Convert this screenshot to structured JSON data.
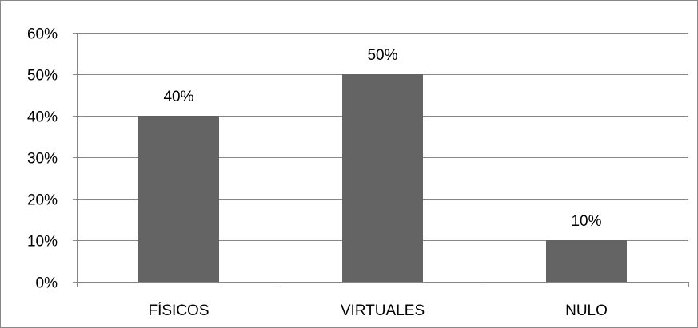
{
  "chart_data": {
    "type": "bar",
    "categories": [
      "FÍSICOS",
      "VIRTUALES",
      "NULO"
    ],
    "values": [
      40,
      50,
      10
    ],
    "data_labels": [
      "40%",
      "50%",
      "10%"
    ],
    "ylim": [
      0,
      60
    ],
    "y_ticks": [
      0,
      10,
      20,
      30,
      40,
      50,
      60
    ],
    "y_tick_labels": [
      "0%",
      "10%",
      "20%",
      "30%",
      "40%",
      "50%",
      "60%"
    ],
    "grid": true,
    "legend": "none",
    "colors": {
      "bar": "#646464",
      "grid": "#878787",
      "text": "#000000"
    }
  }
}
